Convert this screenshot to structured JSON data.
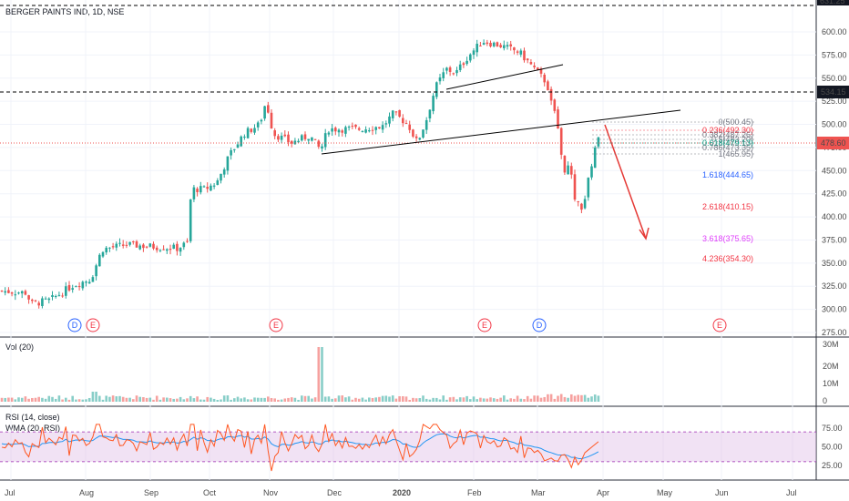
{
  "chart_data": {
    "type": "candlestick",
    "symbol_title": "BERGER PAINTS IND, 1D, NSE",
    "last_price": "478.60",
    "resistance_label": "534.15",
    "top_label": "631.25",
    "price_ticks": [
      "600.00",
      "575.00",
      "550.00",
      "525.00",
      "500.00",
      "475.00",
      "450.00",
      "425.00",
      "400.00",
      "375.00",
      "350.00",
      "325.00",
      "300.00",
      "275.00"
    ],
    "time_labels": [
      "Jul",
      "Aug",
      "Sep",
      "Oct",
      "Nov",
      "Dec",
      "2020",
      "Feb",
      "Mar",
      "Apr",
      "May",
      "Jun",
      "Jul"
    ],
    "fib_levels": [
      {
        "label": "0(500.45)",
        "color": "#787b86",
        "price": 500.45
      },
      {
        "label": "0.236(492.30)",
        "color": "#f23645",
        "price": 492.3
      },
      {
        "label": "0.382(487.26)",
        "color": "#787b86",
        "price": 487.26
      },
      {
        "label": "0.5(483.20)",
        "color": "#787b86",
        "price": 483.2
      },
      {
        "label": "0.618(479.13)",
        "color": "#089981",
        "price": 479.13
      },
      {
        "label": "0.786(473.35)",
        "color": "#787b86",
        "price": 473.35
      },
      {
        "label": "1(465.95)",
        "color": "#787b86",
        "price": 465.95
      },
      {
        "label": "1.618(444.65)",
        "color": "#2962ff",
        "price": 444.65
      },
      {
        "label": "2.618(410.15)",
        "color": "#f23645",
        "price": 410.15
      },
      {
        "label": "3.618(375.65)",
        "color": "#e040fb",
        "price": 375.65
      },
      {
        "label": "4.236(354.30)",
        "color": "#f23645",
        "price": 354.3
      }
    ],
    "event_markers": [
      "D",
      "E",
      "E",
      "E",
      "D",
      "E"
    ],
    "volume_panel": {
      "title": "Vol (20)",
      "ticks": [
        "30M",
        "20M",
        "10M",
        "0"
      ]
    },
    "rsi_panel": {
      "title": "RSI (14, close)",
      "ma_title": "WMA (20, RSI)",
      "ticks": [
        "75.00",
        "50.00",
        "25.00"
      ],
      "band": [
        30,
        70
      ]
    },
    "colors": {
      "up": "#26a69a",
      "down": "#ef5350",
      "rsi": "#ff5722",
      "rsi_ma": "#2196f3",
      "band": "#e1bee7",
      "line": "#000000"
    }
  }
}
